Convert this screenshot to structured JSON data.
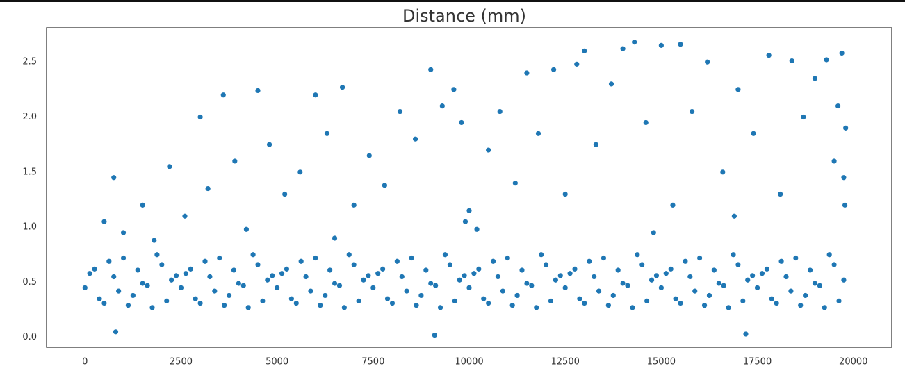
{
  "chart_data": {
    "type": "scatter",
    "title": "Distance (mm)",
    "color": "#1f77b4",
    "grid": false,
    "xlim": [
      -1000,
      21000
    ],
    "xticks": [
      0,
      2500,
      5000,
      7500,
      10000,
      12500,
      15000,
      17500,
      20000
    ],
    "ylim": [
      -0.09,
      2.81
    ],
    "yticks": [
      {
        "value": 0,
        "label": "0.0"
      },
      0.5,
      {
        "value": 1,
        "label": "1.0"
      },
      1.5,
      {
        "value": 2,
        "label": "2.0"
      },
      2.5
    ],
    "x": [
      0,
      250,
      500,
      750,
      1000,
      1250,
      1500,
      1750,
      2000,
      2250,
      2500,
      2750,
      3000,
      3250,
      3500,
      3750,
      4000,
      4250,
      4500,
      4750,
      5000,
      5250,
      5500,
      5750,
      6000,
      6250,
      6500,
      6750,
      7000,
      7250,
      7500,
      7750,
      8000,
      8250,
      8500,
      8750,
      9000,
      9250,
      9500,
      9750,
      10000,
      10250,
      10500,
      10750,
      11000,
      11250,
      11500,
      11750,
      12000,
      12250,
      12500,
      12750,
      13000,
      13250,
      13500,
      13750,
      14000,
      14250,
      14500,
      14750,
      15000,
      15250,
      15500,
      15750,
      16000,
      16250,
      16500,
      16750,
      17000,
      17250,
      17500,
      17750,
      18000,
      18250,
      18500,
      18750,
      19000,
      19250,
      19500,
      19750,
      125,
      375,
      625,
      875,
      1125,
      1375,
      1625,
      1875,
      2125,
      2375,
      2625,
      2875,
      3125,
      3375,
      3625,
      3875,
      4125,
      4375,
      4625,
      4875,
      5125,
      5375,
      5625,
      5875,
      6125,
      6375,
      6625,
      6875,
      7125,
      7375,
      7625,
      7875,
      8125,
      8375,
      8625,
      8875,
      9125,
      9375,
      9625,
      9875,
      10125,
      10375,
      10625,
      10875,
      11125,
      11375,
      11625,
      11875,
      12125,
      12375,
      12625,
      12875,
      13125,
      13375,
      13625,
      13875,
      14125,
      14375,
      14625,
      14875,
      15125,
      15375,
      15625,
      15875,
      16125,
      16375,
      16625,
      16875,
      17125,
      17375,
      17625,
      17875,
      18125,
      18375,
      18625,
      18875,
      19125,
      19375,
      19625,
      500,
      750,
      1000,
      1500,
      1800,
      2200,
      2600,
      3000,
      3200,
      3600,
      3900,
      4200,
      4500,
      4800,
      5200,
      5600,
      6000,
      6300,
      6700,
      7000,
      7400,
      7800,
      8200,
      8600,
      9000,
      9300,
      9600,
      9800,
      10000,
      10200,
      10500,
      10800,
      11200,
      11500,
      11800,
      12200,
      12500,
      12800,
      13000,
      13300,
      13700,
      14000,
      14300,
      14600,
      15000,
      15300,
      15500,
      15800,
      16200,
      16600,
      17000,
      17400,
      17800,
      18100,
      18400,
      18700,
      19000,
      19300,
      19500,
      19600,
      19700,
      19750,
      19800,
      19780,
      9900,
      14800,
      6500,
      16900,
      800,
      17200,
      9100
    ],
    "values": [
      0.45,
      0.62,
      0.31,
      0.55,
      0.72,
      0.38,
      0.49,
      0.27,
      0.66,
      0.52,
      0.45,
      0.62,
      0.31,
      0.55,
      0.72,
      0.38,
      0.49,
      0.27,
      0.66,
      0.52,
      0.45,
      0.62,
      0.31,
      0.55,
      0.72,
      0.38,
      0.49,
      0.27,
      0.66,
      0.52,
      0.45,
      0.62,
      0.31,
      0.55,
      0.72,
      0.38,
      0.49,
      0.27,
      0.66,
      0.52,
      0.45,
      0.62,
      0.31,
      0.55,
      0.72,
      0.38,
      0.49,
      0.27,
      0.66,
      0.52,
      0.45,
      0.62,
      0.31,
      0.55,
      0.72,
      0.38,
      0.49,
      0.27,
      0.66,
      0.52,
      0.45,
      0.62,
      0.31,
      0.55,
      0.72,
      0.38,
      0.49,
      0.27,
      0.66,
      0.52,
      0.45,
      0.62,
      0.31,
      0.55,
      0.72,
      0.38,
      0.49,
      0.27,
      0.66,
      0.52,
      0.58,
      0.35,
      0.69,
      0.42,
      0.29,
      0.61,
      0.47,
      0.75,
      0.33,
      0.56,
      0.58,
      0.35,
      0.69,
      0.42,
      0.29,
      0.61,
      0.47,
      0.75,
      0.33,
      0.56,
      0.58,
      0.35,
      0.69,
      0.42,
      0.29,
      0.61,
      0.47,
      0.75,
      0.33,
      0.56,
      0.58,
      0.35,
      0.69,
      0.42,
      0.29,
      0.61,
      0.47,
      0.75,
      0.33,
      0.56,
      0.58,
      0.35,
      0.69,
      0.42,
      0.29,
      0.61,
      0.47,
      0.75,
      0.33,
      0.56,
      0.58,
      0.35,
      0.69,
      0.42,
      0.29,
      0.61,
      0.47,
      0.75,
      0.33,
      0.56,
      0.58,
      0.35,
      0.69,
      0.42,
      0.29,
      0.61,
      0.47,
      0.75,
      0.33,
      0.56,
      0.58,
      0.35,
      0.69,
      0.42,
      0.29,
      0.61,
      0.47,
      0.75,
      0.33,
      1.05,
      1.45,
      0.95,
      1.2,
      0.88,
      1.55,
      1.1,
      2.0,
      1.35,
      2.2,
      1.6,
      0.98,
      2.24,
      1.75,
      1.3,
      1.5,
      2.2,
      1.85,
      2.27,
      1.2,
      1.65,
      1.38,
      2.05,
      1.8,
      2.43,
      2.1,
      2.25,
      1.95,
      1.15,
      0.98,
      1.7,
      2.05,
      1.4,
      2.4,
      1.85,
      2.43,
      1.3,
      2.48,
      2.6,
      1.75,
      2.3,
      2.62,
      2.68,
      1.95,
      2.65,
      1.2,
      2.66,
      2.05,
      2.5,
      1.5,
      2.25,
      1.85,
      2.56,
      1.3,
      2.51,
      2.0,
      2.35,
      2.52,
      1.6,
      2.1,
      2.58,
      1.45,
      1.9,
      1.2,
      1.05,
      0.95,
      0.9,
      1.1,
      0.05,
      0.03,
      0.02
    ]
  }
}
